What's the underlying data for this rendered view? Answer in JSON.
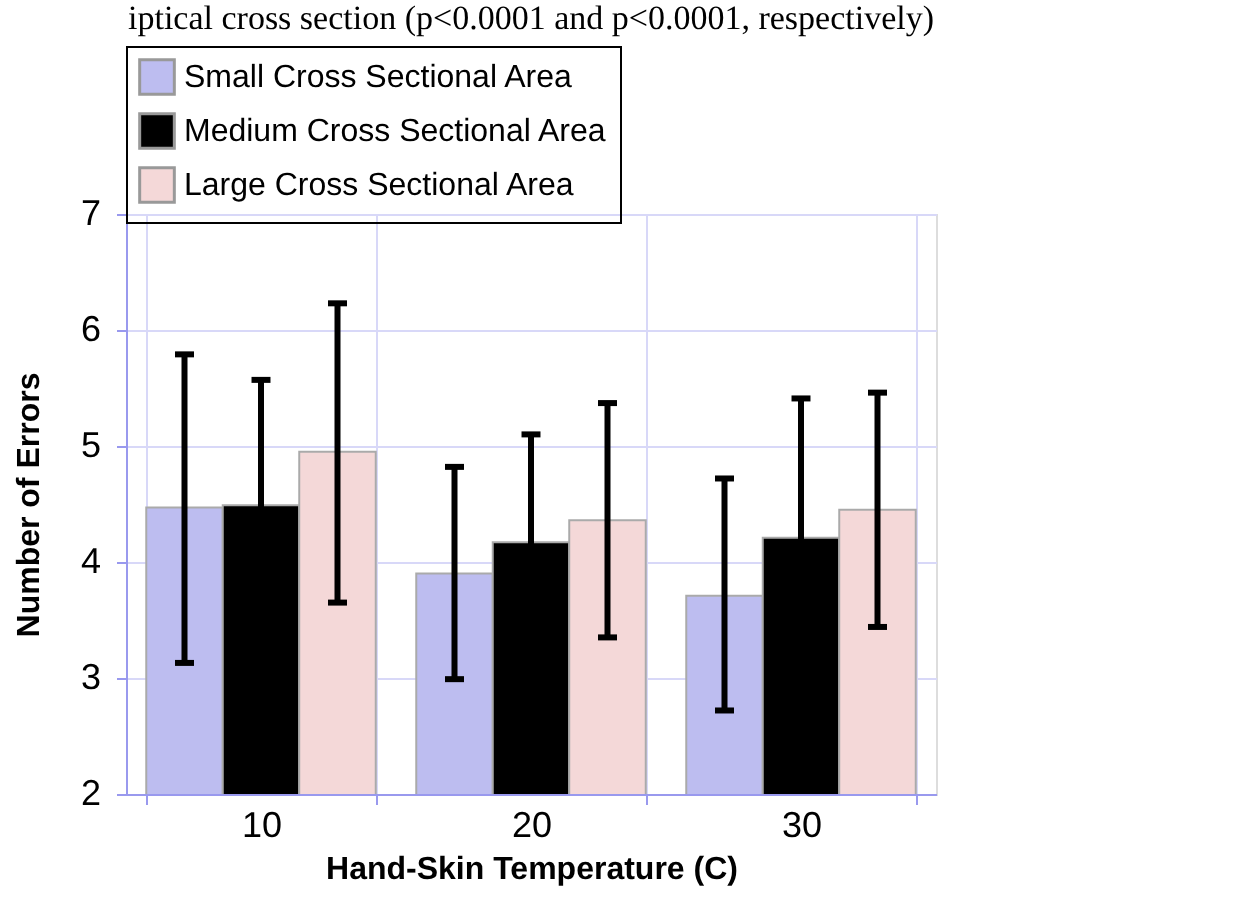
{
  "chart_data": {
    "type": "bar",
    "annotations": [
      "iptical cross section (p<0.0001 and p<0.0001, respectively)"
    ],
    "xlabel": "Hand-Skin Temperature (C)",
    "ylabel": "Number of Errors",
    "categories": [
      "10",
      "20",
      "30"
    ],
    "series": [
      {
        "name": "Small Cross Sectional Area",
        "color": "#bdbdf0",
        "values": [
          4.47,
          3.9,
          3.71
        ],
        "errors": [
          [
            3.13,
            5.79
          ],
          [
            2.99,
            4.82
          ],
          [
            2.72,
            4.72
          ]
        ]
      },
      {
        "name": "Medium Cross Sectional Area",
        "color": "#000000",
        "values": [
          4.49,
          4.17,
          4.21
        ],
        "errors": [
          1.08,
          0.93,
          1.2
        ]
      },
      {
        "name": "Large Cross Sectional Area",
        "color": "#f4d8d8",
        "values": [
          4.95,
          4.36,
          4.45
        ],
        "errors": [
          [
            3.65,
            6.23
          ],
          [
            3.35,
            5.37
          ],
          [
            3.44,
            5.46
          ]
        ]
      }
    ],
    "ylim": [
      2,
      7
    ],
    "yticks": [
      2,
      3,
      4,
      5,
      6,
      7
    ],
    "grid": true,
    "legend": "top"
  }
}
